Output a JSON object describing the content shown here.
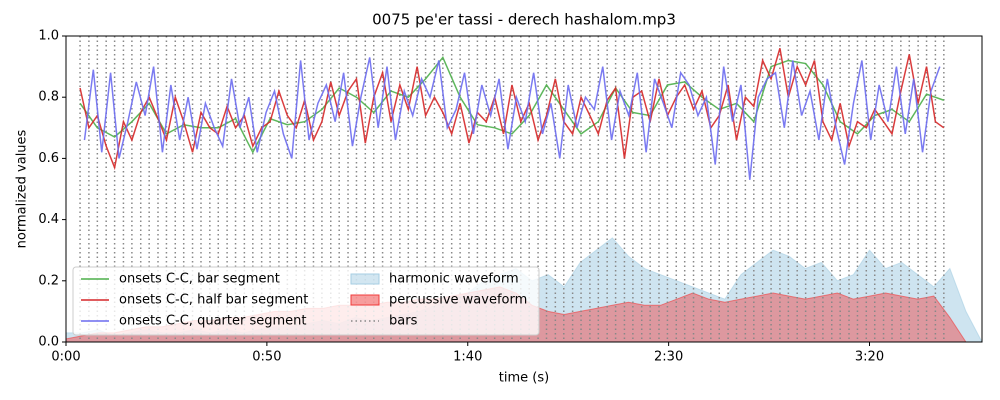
{
  "chart_data": {
    "type": "line",
    "title": "0075 pe'er tassi - derech hashalom.mp3",
    "x_label": "time (s)",
    "y_label": "normalized values",
    "xlim": [
      0,
      228
    ],
    "ylim": [
      0,
      1
    ],
    "xticks": [
      {
        "value": 0,
        "label": "0:00"
      },
      {
        "value": 50,
        "label": "0:50"
      },
      {
        "value": 100,
        "label": "1:40"
      },
      {
        "value": 150,
        "label": "2:30"
      },
      {
        "value": 200,
        "label": "3:20"
      }
    ],
    "yticks": [
      {
        "value": 0,
        "label": "0.0"
      },
      0.2,
      0.4,
      0.6,
      0.8,
      {
        "value": 1,
        "label": "1.0"
      }
    ],
    "legend_position": "lower left",
    "series": [
      {
        "name": "onsets C-C, bar segment",
        "color": "#4daf4a",
        "x": [
          3.5,
          7.8,
          12.1,
          16.4,
          20.7,
          25.0,
          29.3,
          33.6,
          37.9,
          42.2,
          46.5,
          50.8,
          55.1,
          59.4,
          63.7,
          68.0,
          72.3,
          76.6,
          80.9,
          85.2,
          89.5,
          93.8,
          98.1,
          102.4,
          106.7,
          111.0,
          115.3,
          119.6,
          123.9,
          128.2,
          132.5,
          136.8,
          141.1,
          145.4,
          149.7,
          154.0,
          158.3,
          162.6,
          166.9,
          171.2,
          175.5,
          179.8,
          184.1,
          188.4,
          192.7,
          197.0,
          201.3,
          205.6,
          209.9,
          214.2,
          218.5
        ],
        "values": [
          0.78,
          0.7,
          0.67,
          0.72,
          0.78,
          0.68,
          0.71,
          0.7,
          0.7,
          0.73,
          0.62,
          0.73,
          0.71,
          0.72,
          0.76,
          0.83,
          0.8,
          0.75,
          0.82,
          0.8,
          0.86,
          0.93,
          0.8,
          0.71,
          0.7,
          0.68,
          0.74,
          0.84,
          0.76,
          0.68,
          0.72,
          0.83,
          0.75,
          0.74,
          0.84,
          0.85,
          0.8,
          0.76,
          0.78,
          0.72,
          0.9,
          0.92,
          0.91,
          0.84,
          0.72,
          0.68,
          0.74,
          0.76,
          0.72,
          0.81,
          0.79
        ]
      },
      {
        "name": "onsets C-C, half bar segment",
        "color": "#d62728",
        "x": [
          3.5,
          5.7,
          7.8,
          10.0,
          12.1,
          14.3,
          16.4,
          18.6,
          20.7,
          22.9,
          25.0,
          27.2,
          29.3,
          31.5,
          33.6,
          35.8,
          37.9,
          40.1,
          42.2,
          44.4,
          46.5,
          48.7,
          50.8,
          53.0,
          55.1,
          57.3,
          59.4,
          61.6,
          63.7,
          65.9,
          68.0,
          70.2,
          72.3,
          74.5,
          76.6,
          78.8,
          80.9,
          83.1,
          85.2,
          87.4,
          89.5,
          91.7,
          93.8,
          96.0,
          98.1,
          100.3,
          102.4,
          104.6,
          106.7,
          108.9,
          111.0,
          113.2,
          115.3,
          117.5,
          119.6,
          121.8,
          123.9,
          126.1,
          128.2,
          130.4,
          132.5,
          134.7,
          136.8,
          139.0,
          141.1,
          143.3,
          145.4,
          147.6,
          149.7,
          151.9,
          154.0,
          156.2,
          158.3,
          160.5,
          162.6,
          164.8,
          166.9,
          169.1,
          171.2,
          173.4,
          175.5,
          177.7,
          179.8,
          182.0,
          184.1,
          186.3,
          188.4,
          190.6,
          192.7,
          194.9,
          197.0,
          199.2,
          201.3,
          203.5,
          205.6,
          207.8,
          209.9,
          212.1,
          214.2,
          216.4,
          218.5
        ],
        "values": [
          0.83,
          0.7,
          0.74,
          0.64,
          0.57,
          0.72,
          0.66,
          0.75,
          0.8,
          0.73,
          0.66,
          0.8,
          0.72,
          0.62,
          0.75,
          0.7,
          0.68,
          0.77,
          0.7,
          0.74,
          0.64,
          0.7,
          0.72,
          0.82,
          0.74,
          0.7,
          0.79,
          0.66,
          0.72,
          0.85,
          0.74,
          0.82,
          0.86,
          0.65,
          0.8,
          0.88,
          0.72,
          0.84,
          0.76,
          0.9,
          0.74,
          0.8,
          0.75,
          0.68,
          0.78,
          0.65,
          0.75,
          0.72,
          0.8,
          0.68,
          0.84,
          0.72,
          0.78,
          0.66,
          0.74,
          0.86,
          0.72,
          0.68,
          0.8,
          0.74,
          0.68,
          0.79,
          0.83,
          0.6,
          0.8,
          0.82,
          0.72,
          0.86,
          0.74,
          0.8,
          0.84,
          0.76,
          0.82,
          0.7,
          0.74,
          0.84,
          0.66,
          0.8,
          0.77,
          0.92,
          0.86,
          0.96,
          0.8,
          0.9,
          0.84,
          0.92,
          0.72,
          0.66,
          0.78,
          0.64,
          0.72,
          0.7,
          0.76,
          0.72,
          0.68,
          0.82,
          0.94,
          0.78,
          0.9,
          0.72,
          0.7
        ]
      },
      {
        "name": "onsets C-C, quarter segment",
        "color": "#6b6bef",
        "x": [
          4.6,
          6.8,
          8.9,
          11.1,
          13.2,
          15.4,
          17.5,
          19.7,
          21.8,
          24.0,
          26.1,
          28.3,
          30.4,
          32.6,
          34.7,
          36.9,
          39.0,
          41.2,
          43.3,
          45.5,
          47.6,
          49.8,
          51.9,
          54.1,
          56.2,
          58.4,
          60.5,
          62.7,
          64.8,
          67.0,
          69.1,
          71.3,
          73.4,
          75.6,
          77.7,
          79.9,
          82.0,
          84.2,
          86.3,
          88.5,
          90.6,
          92.8,
          94.9,
          97.1,
          99.2,
          101.4,
          103.5,
          105.7,
          107.8,
          110.0,
          112.1,
          114.3,
          116.4,
          118.6,
          120.7,
          122.9,
          125.0,
          127.2,
          129.3,
          131.5,
          133.6,
          135.8,
          137.9,
          140.1,
          142.2,
          144.4,
          146.5,
          148.7,
          150.8,
          153.0,
          155.1,
          157.3,
          159.4,
          161.6,
          163.7,
          165.9,
          168.0,
          170.2,
          172.3,
          174.5,
          176.6,
          178.8,
          180.9,
          183.1,
          185.2,
          187.4,
          189.5,
          191.7,
          193.8,
          196.0,
          198.1,
          200.3,
          202.4,
          204.6,
          206.7,
          208.9,
          211.0,
          213.2,
          215.3,
          217.5
        ],
        "values": [
          0.66,
          0.89,
          0.62,
          0.88,
          0.6,
          0.72,
          0.85,
          0.74,
          0.9,
          0.62,
          0.84,
          0.66,
          0.8,
          0.63,
          0.78,
          0.7,
          0.64,
          0.86,
          0.7,
          0.8,
          0.62,
          0.75,
          0.82,
          0.68,
          0.6,
          0.92,
          0.66,
          0.78,
          0.84,
          0.72,
          0.88,
          0.64,
          0.8,
          0.93,
          0.7,
          0.9,
          0.66,
          0.82,
          0.74,
          0.86,
          0.8,
          0.92,
          0.7,
          0.76,
          0.88,
          0.68,
          0.84,
          0.74,
          0.86,
          0.63,
          0.8,
          0.72,
          0.88,
          0.68,
          0.78,
          0.6,
          0.84,
          0.7,
          0.8,
          0.76,
          0.9,
          0.66,
          0.82,
          0.74,
          0.88,
          0.62,
          0.86,
          0.78,
          0.7,
          0.88,
          0.84,
          0.74,
          0.8,
          0.58,
          0.9,
          0.72,
          0.84,
          0.53,
          0.8,
          0.86,
          0.88,
          0.7,
          0.92,
          0.74,
          0.82,
          0.66,
          0.86,
          0.7,
          0.58,
          0.78,
          0.92,
          0.66,
          0.84,
          0.72,
          0.9,
          0.68,
          0.86,
          0.62,
          0.82,
          0.9
        ]
      }
    ],
    "areas": [
      {
        "name": "harmonic waveform",
        "color": "#a6cee3",
        "x": [
          0,
          4,
          8,
          12,
          16,
          20,
          24,
          28,
          32,
          36,
          40,
          44,
          48,
          52,
          56,
          60,
          64,
          68,
          72,
          76,
          80,
          84,
          88,
          92,
          96,
          100,
          104,
          108,
          112,
          116,
          120,
          124,
          128,
          132,
          136,
          140,
          144,
          148,
          152,
          156,
          160,
          164,
          168,
          172,
          176,
          180,
          184,
          188,
          192,
          196,
          200,
          204,
          208,
          212,
          216,
          220,
          224,
          228
        ],
        "values": [
          0.03,
          0.03,
          0.04,
          0.02,
          0.03,
          0.04,
          0.03,
          0.03,
          0.04,
          0.03,
          0.04,
          0.03,
          0.04,
          0.05,
          0.05,
          0.06,
          0.07,
          0.06,
          0.08,
          0.07,
          0.08,
          0.09,
          0.1,
          0.12,
          0.14,
          0.16,
          0.2,
          0.22,
          0.24,
          0.2,
          0.22,
          0.18,
          0.26,
          0.3,
          0.34,
          0.28,
          0.24,
          0.22,
          0.2,
          0.18,
          0.16,
          0.14,
          0.22,
          0.26,
          0.3,
          0.28,
          0.24,
          0.26,
          0.2,
          0.22,
          0.3,
          0.24,
          0.26,
          0.22,
          0.18,
          0.24,
          0.1,
          0.0
        ]
      },
      {
        "name": "percussive waveform",
        "color": "#f03c3c",
        "x": [
          0,
          4,
          8,
          12,
          16,
          20,
          24,
          28,
          32,
          36,
          40,
          44,
          48,
          52,
          56,
          60,
          64,
          68,
          72,
          76,
          80,
          84,
          88,
          92,
          96,
          100,
          104,
          108,
          112,
          116,
          120,
          124,
          128,
          132,
          136,
          140,
          144,
          148,
          152,
          156,
          160,
          164,
          168,
          172,
          176,
          180,
          184,
          188,
          192,
          196,
          200,
          204,
          208,
          212,
          216,
          220,
          224,
          228
        ],
        "values": [
          0.01,
          0.02,
          0.03,
          0.03,
          0.04,
          0.05,
          0.05,
          0.06,
          0.07,
          0.07,
          0.08,
          0.08,
          0.09,
          0.1,
          0.1,
          0.11,
          0.11,
          0.12,
          0.12,
          0.12,
          0.13,
          0.13,
          0.14,
          0.14,
          0.15,
          0.16,
          0.17,
          0.18,
          0.16,
          0.12,
          0.1,
          0.09,
          0.1,
          0.11,
          0.12,
          0.13,
          0.12,
          0.12,
          0.14,
          0.16,
          0.14,
          0.13,
          0.14,
          0.15,
          0.16,
          0.15,
          0.14,
          0.15,
          0.16,
          0.14,
          0.15,
          0.16,
          0.15,
          0.14,
          0.15,
          0.08,
          0.0,
          0.0
        ]
      }
    ],
    "bars": {
      "name": "bars",
      "color": "#888888",
      "x": [
        3.5,
        5.7,
        7.8,
        10.0,
        12.1,
        14.3,
        16.4,
        18.6,
        20.7,
        22.9,
        25.0,
        27.2,
        29.3,
        31.5,
        33.6,
        35.8,
        37.9,
        40.1,
        42.2,
        44.4,
        46.5,
        48.7,
        50.8,
        53.0,
        55.1,
        57.3,
        59.4,
        61.6,
        63.7,
        65.9,
        68.0,
        70.2,
        72.3,
        74.5,
        76.6,
        78.8,
        80.9,
        83.1,
        85.2,
        87.4,
        89.5,
        91.7,
        93.8,
        96.0,
        98.1,
        100.3,
        102.4,
        104.6,
        106.7,
        108.9,
        111.0,
        113.2,
        115.3,
        117.5,
        119.6,
        121.8,
        123.9,
        126.1,
        128.2,
        130.4,
        132.5,
        134.7,
        136.8,
        139.0,
        141.1,
        143.3,
        145.4,
        147.6,
        149.7,
        151.9,
        154.0,
        156.2,
        158.3,
        160.5,
        162.6,
        164.8,
        166.9,
        169.1,
        171.2,
        173.4,
        175.5,
        177.7,
        179.8,
        182.0,
        184.1,
        186.3,
        188.4,
        190.6,
        192.7,
        194.9,
        197.0,
        199.2,
        201.3,
        203.5,
        205.6,
        207.8,
        209.9,
        212.1,
        214.2,
        216.4,
        218.5
      ]
    }
  }
}
